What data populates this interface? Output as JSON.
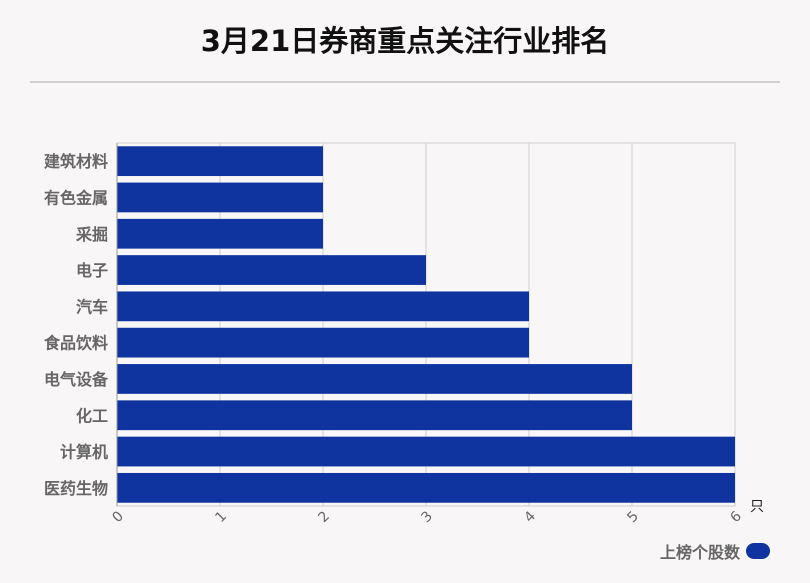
{
  "title": "3月21日券商重点关注行业排名",
  "legend": {
    "label": "上榜个股数"
  },
  "colors": {
    "bar": "#0f34a0",
    "grid": "#d0d0d0",
    "axis_text": "#666666",
    "background": "#f9f6f7"
  },
  "chart_data": {
    "type": "bar",
    "orientation": "horizontal",
    "categories": [
      "建筑材料",
      "有色金属",
      "采掘",
      "电子",
      "汽车",
      "食品饮料",
      "电气设备",
      "化工",
      "计算机",
      "医药生物"
    ],
    "series": [
      {
        "name": "上榜个股数",
        "values": [
          2,
          2,
          2,
          3,
          4,
          4,
          5,
          5,
          6,
          6
        ]
      }
    ],
    "x_ticks": [
      "0",
      "1",
      "2",
      "3",
      "4",
      "5",
      "6"
    ],
    "xlim": [
      0,
      6
    ],
    "x_unit": "只",
    "grid": true,
    "legend_position": "bottom-right"
  }
}
